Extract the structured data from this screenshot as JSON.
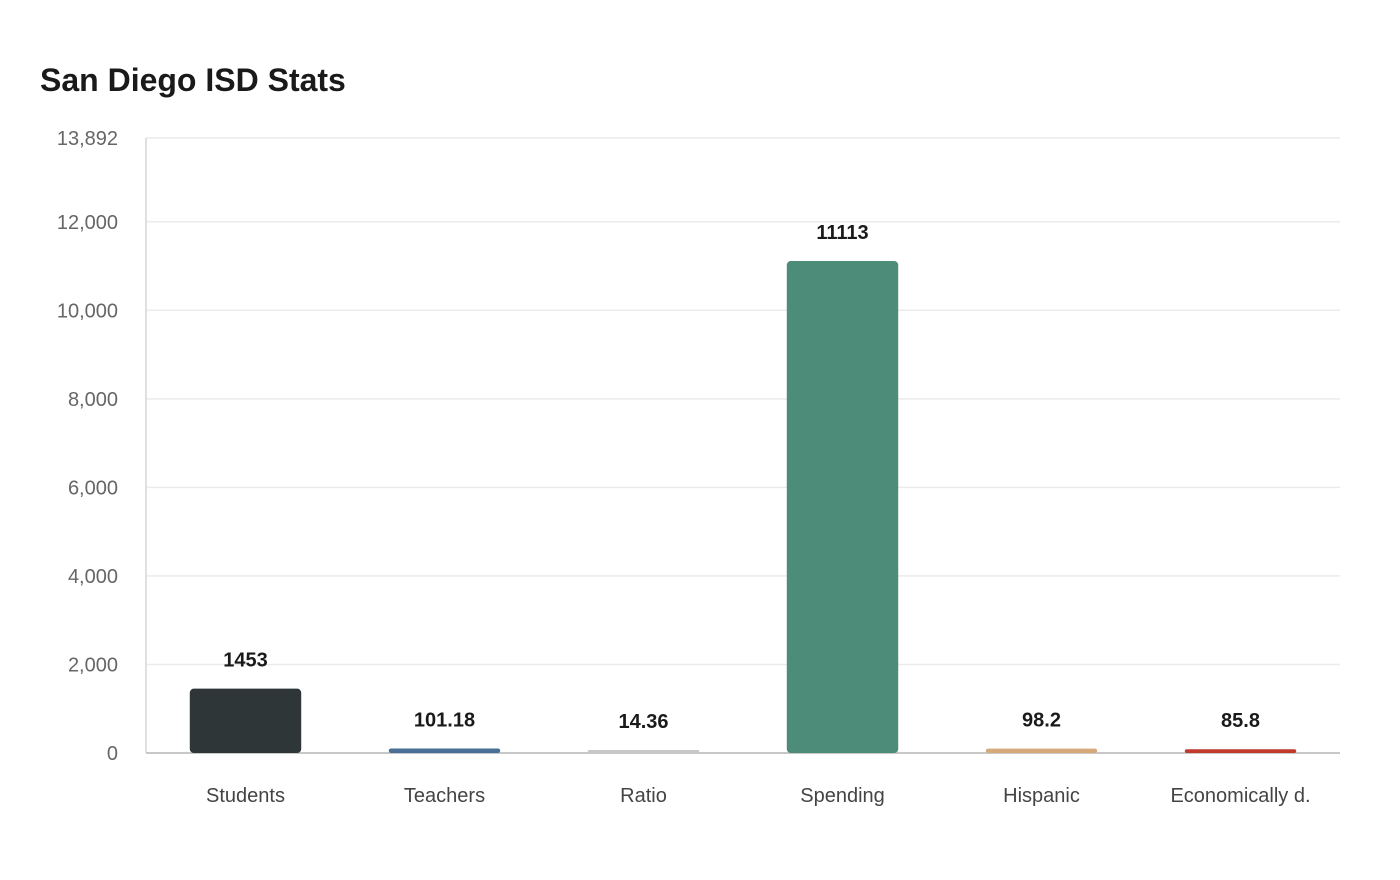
{
  "chart_data": {
    "type": "bar",
    "title": "San Diego ISD Stats",
    "xlabel": "",
    "ylabel": "",
    "categories": [
      "Students",
      "Teachers",
      "Ratio",
      "Spending",
      "Hispanic",
      "Economically d."
    ],
    "values": [
      1453,
      101.18,
      14.36,
      11113,
      98.2,
      85.8
    ],
    "value_labels": [
      "1453",
      "101.18",
      "14.36",
      "11113",
      "98.2",
      "85.8"
    ],
    "bar_colors": [
      "#2e3638",
      "#4a6f96",
      "#c8c8c8",
      "#4e8c7a",
      "#d6a97a",
      "#c0392b"
    ],
    "ylim": [
      0,
      13892
    ],
    "yticks": [
      0,
      2000,
      4000,
      6000,
      8000,
      10000,
      12000,
      13892
    ],
    "ytick_labels": [
      "0",
      "2,000",
      "4,000",
      "6,000",
      "8,000",
      "10,000",
      "12,000",
      "13,892"
    ],
    "grid": true,
    "legend": "none"
  }
}
